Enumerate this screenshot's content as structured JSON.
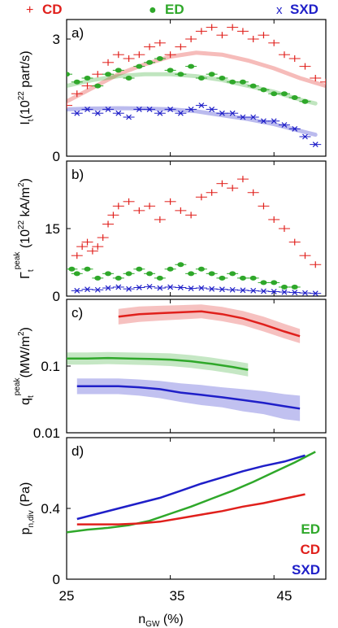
{
  "legend": [
    {
      "marker": "+",
      "label": "CD",
      "color": "#e0201c"
    },
    {
      "marker": "●",
      "label": "ED",
      "color": "#2fa82a"
    },
    {
      "marker": "x",
      "label": "SXD",
      "color": "#1f1fc8"
    }
  ],
  "colors": {
    "CD": "#e0201c",
    "ED": "#2fa82a",
    "SXD": "#1f1fc8",
    "axis": "#000000"
  },
  "xaxis": {
    "label_main": "n",
    "label_sub": "GW",
    "label_unit": " (%)",
    "ticks": [
      25,
      35,
      45
    ],
    "range": [
      25,
      50
    ]
  },
  "chart_data": [
    {
      "type": "scatter",
      "panel_label": "a)",
      "ylabel_parts": [
        "I",
        "t",
        "(10",
        "22",
        " part/s)"
      ],
      "yticks": [
        0,
        3
      ],
      "ylim": [
        0,
        3.5
      ],
      "series": [
        {
          "name": "CD",
          "marker": "+",
          "x": [
            25.0,
            26.0,
            27.0,
            28.0,
            29.0,
            30.0,
            31.0,
            32.0,
            33.0,
            34.0,
            35.0,
            36.0,
            37.0,
            38.0,
            39.0,
            40.0,
            41.0,
            42.0,
            43.0,
            44.0,
            45.0,
            46.0,
            47.0,
            48.0,
            49.0,
            50.0
          ],
          "y": [
            1.3,
            1.6,
            1.8,
            2.1,
            2.4,
            2.6,
            2.5,
            2.6,
            2.8,
            2.9,
            2.6,
            2.8,
            3.0,
            3.2,
            3.3,
            3.1,
            3.3,
            3.2,
            3.0,
            3.1,
            2.9,
            2.6,
            2.5,
            2.3,
            2.0,
            1.9
          ]
        },
        {
          "name": "ED",
          "marker": "●",
          "x": [
            25.0,
            26.0,
            27.0,
            28.0,
            29.0,
            30.0,
            31.0,
            32.0,
            33.0,
            34.0,
            35.0,
            36.0,
            37.0,
            38.0,
            39.0,
            40.0,
            41.0,
            42.0,
            43.0,
            44.0,
            45.0,
            46.0,
            47.0,
            48.0
          ],
          "y": [
            2.1,
            1.9,
            2.0,
            1.8,
            2.1,
            2.2,
            2.0,
            2.3,
            2.4,
            2.5,
            2.2,
            2.1,
            2.3,
            2.0,
            2.1,
            2.0,
            1.9,
            1.9,
            1.8,
            1.7,
            1.6,
            1.6,
            1.5,
            1.4
          ]
        },
        {
          "name": "SXD",
          "marker": "x",
          "x": [
            26.0,
            27.0,
            28.0,
            29.0,
            30.0,
            31.0,
            32.0,
            33.0,
            34.0,
            35.0,
            36.0,
            37.0,
            38.0,
            39.0,
            40.0,
            41.0,
            42.0,
            43.0,
            44.0,
            45.0,
            46.0,
            47.0,
            48.0,
            49.0
          ],
          "y": [
            1.1,
            1.2,
            1.1,
            1.2,
            1.1,
            1.0,
            1.2,
            1.2,
            1.1,
            1.2,
            1.1,
            1.2,
            1.3,
            1.2,
            1.1,
            1.1,
            1.0,
            1.0,
            0.9,
            0.9,
            0.8,
            0.7,
            0.5,
            0.3
          ]
        }
      ],
      "fits": [
        {
          "name": "CD",
          "x": [
            25.0,
            27.5,
            30.0,
            32.5,
            35.0,
            37.5,
            40.0,
            42.5,
            45.0,
            47.5,
            50.0
          ],
          "y": [
            1.4,
            1.75,
            2.1,
            2.35,
            2.55,
            2.65,
            2.6,
            2.45,
            2.25,
            2.0,
            1.8
          ]
        },
        {
          "name": "ED",
          "x": [
            25.0,
            27.5,
            30.0,
            32.5,
            35.0,
            37.5,
            40.0,
            42.5,
            45.0,
            47.5,
            49.0
          ],
          "y": [
            1.8,
            1.95,
            2.05,
            2.1,
            2.1,
            2.05,
            1.95,
            1.8,
            1.65,
            1.45,
            1.35
          ]
        },
        {
          "name": "SXD",
          "x": [
            25.0,
            27.5,
            30.0,
            32.5,
            35.0,
            37.5,
            40.0,
            42.5,
            45.0,
            47.5,
            49.0
          ],
          "y": [
            1.2,
            1.22,
            1.23,
            1.22,
            1.2,
            1.15,
            1.05,
            0.95,
            0.82,
            0.65,
            0.55
          ]
        }
      ]
    },
    {
      "type": "scatter",
      "panel_label": "b)",
      "ylabel_parts": [
        "Γ",
        "t",
        "peak",
        " (10",
        "22",
        " kA/m",
        "2",
        ")"
      ],
      "yticks": [
        0,
        15
      ],
      "ylim": [
        0,
        30
      ],
      "series": [
        {
          "name": "CD",
          "marker": "+",
          "x": [
            26.0,
            26.5,
            27.0,
            27.5,
            28.0,
            28.5,
            29.0,
            29.5,
            30.0,
            31.0,
            32.0,
            33.0,
            34.0,
            35.0,
            36.0,
            37.0,
            38.0,
            39.0,
            40.0,
            41.0,
            42.0,
            43.0,
            44.0,
            45.0,
            46.0,
            47.0,
            48.0,
            49.0
          ],
          "y": [
            9,
            11,
            12,
            10,
            11,
            13,
            16,
            18,
            20,
            21,
            19,
            20,
            17,
            21,
            19,
            18,
            22,
            23,
            25,
            24,
            26,
            23,
            20,
            17,
            15,
            12,
            9,
            7
          ]
        },
        {
          "name": "ED",
          "marker": "●",
          "x": [
            25.5,
            26.0,
            27.0,
            28.0,
            29.0,
            30.0,
            31.0,
            32.0,
            33.0,
            34.0,
            35.0,
            36.0,
            37.0,
            38.0,
            39.0,
            40.0,
            41.0,
            42.0,
            43.0,
            44.0,
            45.0,
            46.0,
            47.0
          ],
          "y": [
            6,
            5,
            6,
            4,
            5,
            4,
            5,
            6,
            5,
            4,
            6,
            7,
            5,
            6,
            5,
            4,
            5,
            4,
            4,
            3,
            3,
            2,
            2
          ]
        },
        {
          "name": "SXD",
          "marker": "x",
          "x": [
            26.0,
            27.0,
            28.0,
            29.0,
            30.0,
            31.0,
            32.0,
            33.0,
            34.0,
            35.0,
            36.0,
            37.0,
            38.0,
            39.0,
            40.0,
            41.0,
            42.0,
            43.0,
            44.0,
            45.0,
            46.0,
            47.0,
            48.0,
            49.0
          ],
          "y": [
            1.2,
            1.5,
            1.4,
            1.8,
            2.0,
            1.6,
            1.9,
            2.1,
            1.8,
            2.0,
            1.9,
            1.7,
            1.8,
            1.6,
            1.5,
            1.4,
            1.3,
            1.2,
            1.1,
            1.0,
            0.9,
            0.8,
            0.7,
            0.6
          ]
        }
      ]
    },
    {
      "type": "line",
      "panel_label": "c)",
      "ylabel_parts": [
        "q",
        "t",
        "peak",
        "(MW/m",
        "2",
        ")"
      ],
      "yscale": "log",
      "yticks": [
        0.01,
        0.1
      ],
      "ylim": [
        0.01,
        1.0
      ],
      "series": [
        {
          "name": "CD",
          "x": [
            30,
            32,
            34,
            36,
            38,
            40,
            42,
            44,
            46,
            47.5
          ],
          "y": [
            0.55,
            0.6,
            0.62,
            0.64,
            0.66,
            0.6,
            0.52,
            0.42,
            0.33,
            0.28
          ],
          "band_lo": [
            0.42,
            0.46,
            0.48,
            0.5,
            0.52,
            0.47,
            0.41,
            0.33,
            0.26,
            0.22
          ],
          "band_hi": [
            0.72,
            0.78,
            0.8,
            0.82,
            0.84,
            0.77,
            0.67,
            0.55,
            0.43,
            0.36
          ]
        },
        {
          "name": "ED",
          "x": [
            25,
            27,
            29,
            31,
            33,
            35,
            37,
            39,
            41,
            42.5
          ],
          "y": [
            0.13,
            0.13,
            0.132,
            0.13,
            0.128,
            0.125,
            0.118,
            0.108,
            0.097,
            0.088
          ],
          "band_lo": [
            0.105,
            0.105,
            0.107,
            0.105,
            0.103,
            0.1,
            0.094,
            0.086,
            0.077,
            0.07
          ],
          "band_hi": [
            0.16,
            0.16,
            0.162,
            0.16,
            0.158,
            0.155,
            0.146,
            0.134,
            0.12,
            0.11
          ]
        },
        {
          "name": "SXD",
          "x": [
            26,
            28,
            30,
            32,
            34,
            36,
            38,
            40,
            42,
            44,
            46,
            47.5
          ],
          "y": [
            0.05,
            0.05,
            0.05,
            0.048,
            0.045,
            0.04,
            0.037,
            0.034,
            0.031,
            0.028,
            0.025,
            0.023
          ],
          "band_lo": [
            0.038,
            0.038,
            0.038,
            0.036,
            0.033,
            0.029,
            0.026,
            0.024,
            0.021,
            0.019,
            0.016,
            0.015
          ],
          "band_hi": [
            0.065,
            0.065,
            0.065,
            0.063,
            0.06,
            0.055,
            0.052,
            0.048,
            0.045,
            0.042,
            0.038,
            0.036
          ]
        }
      ]
    },
    {
      "type": "line",
      "panel_label": "d)",
      "ylabel_parts": [
        "p",
        "n,div",
        " (Pa)"
      ],
      "yticks": [
        0,
        0.4
      ],
      "ylim": [
        0,
        0.8
      ],
      "series": [
        {
          "name": "ED",
          "x": [
            25,
            27,
            29,
            31,
            33,
            35,
            37,
            39,
            41,
            43,
            45,
            47,
            49
          ],
          "y": [
            0.265,
            0.28,
            0.29,
            0.305,
            0.33,
            0.37,
            0.41,
            0.455,
            0.5,
            0.55,
            0.605,
            0.66,
            0.72
          ]
        },
        {
          "name": "CD",
          "x": [
            26,
            28,
            30,
            32,
            34,
            36,
            38,
            40,
            42,
            44,
            46,
            48
          ],
          "y": [
            0.31,
            0.31,
            0.31,
            0.315,
            0.325,
            0.345,
            0.365,
            0.385,
            0.41,
            0.43,
            0.455,
            0.48
          ]
        },
        {
          "name": "SXD",
          "x": [
            26,
            28,
            30,
            32,
            34,
            36,
            38,
            40,
            42,
            44,
            46,
            48
          ],
          "y": [
            0.34,
            0.37,
            0.4,
            0.43,
            0.46,
            0.5,
            0.54,
            0.575,
            0.61,
            0.64,
            0.665,
            0.7
          ]
        }
      ],
      "legend": [
        {
          "label": "ED",
          "color": "#2fa82a"
        },
        {
          "label": "CD",
          "color": "#e0201c"
        },
        {
          "label": "SXD",
          "color": "#1f1fc8"
        }
      ]
    }
  ]
}
